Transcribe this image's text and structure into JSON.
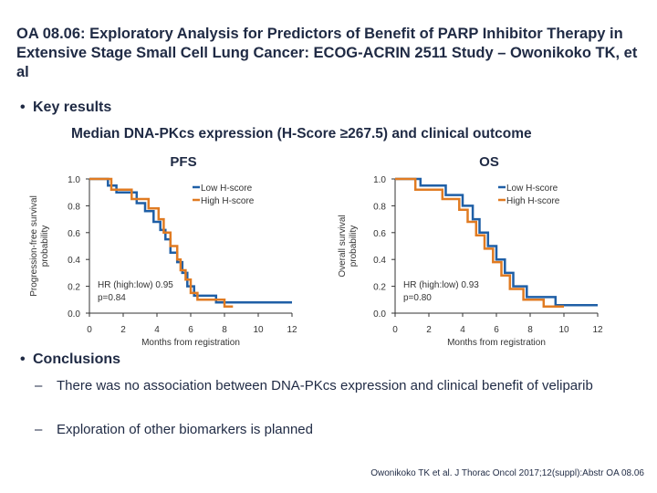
{
  "slide": {
    "title": "OA 08.06: Exploratory Analysis for Predictors of Benefit of PARP Inhibitor Therapy in Extensive Stage Small Cell Lung Cancer: ECOG-ACRIN 2511 Study – Owonikoko TK, et al",
    "key_results_heading": "Key results",
    "subtitle": "Median DNA-PKcs expression (H-Score ≥267.5) and clinical outcome",
    "conclusions_heading": "Conclusions",
    "conclusions": [
      "There was no association between DNA-PKcs expression and clinical benefit of veliparib",
      "Exploration of other biomarkers is planned"
    ],
    "citation": "Owonikoko TK et al. J Thorac Oncol 2017;12(suppl):Abstr OA 08.06"
  },
  "colors": {
    "low": "#1f5fa6",
    "high": "#e07b22",
    "text": "#1f2a44"
  },
  "chart_data": [
    {
      "type": "line",
      "title": "PFS",
      "xlabel": "Months from registration",
      "ylabel": "Progression-free survival probability",
      "xlim": [
        0,
        12
      ],
      "ylim": [
        0,
        1
      ],
      "xticks": [
        "0",
        "2",
        "4",
        "6",
        "8",
        "10",
        "12"
      ],
      "yticks": [
        "0.0",
        "0.2",
        "0.4",
        "0.6",
        "0.8",
        "1.0"
      ],
      "annotation": [
        "HR (high:low) 0.95",
        "p=0.84"
      ],
      "legend": [
        "Low H-score",
        "High H-score"
      ],
      "series": [
        {
          "name": "Low H-score",
          "color": "#1f5fa6",
          "points": [
            [
              0,
              1
            ],
            [
              1.1,
              1
            ],
            [
              1.1,
              0.95
            ],
            [
              1.6,
              0.95
            ],
            [
              1.6,
              0.9
            ],
            [
              2.8,
              0.9
            ],
            [
              2.8,
              0.82
            ],
            [
              3.3,
              0.82
            ],
            [
              3.3,
              0.76
            ],
            [
              3.8,
              0.76
            ],
            [
              3.8,
              0.68
            ],
            [
              4.2,
              0.68
            ],
            [
              4.2,
              0.62
            ],
            [
              4.5,
              0.62
            ],
            [
              4.5,
              0.55
            ],
            [
              4.8,
              0.55
            ],
            [
              4.8,
              0.45
            ],
            [
              5.2,
              0.45
            ],
            [
              5.2,
              0.38
            ],
            [
              5.5,
              0.38
            ],
            [
              5.5,
              0.3
            ],
            [
              5.8,
              0.3
            ],
            [
              5.8,
              0.2
            ],
            [
              6.2,
              0.2
            ],
            [
              6.2,
              0.13
            ],
            [
              7.5,
              0.13
            ],
            [
              7.5,
              0.08
            ],
            [
              12,
              0.08
            ]
          ]
        },
        {
          "name": "High H-score",
          "color": "#e07b22",
          "points": [
            [
              0,
              1
            ],
            [
              1.3,
              1
            ],
            [
              1.3,
              0.92
            ],
            [
              2.5,
              0.92
            ],
            [
              2.5,
              0.85
            ],
            [
              3.5,
              0.85
            ],
            [
              3.5,
              0.78
            ],
            [
              4.1,
              0.78
            ],
            [
              4.1,
              0.7
            ],
            [
              4.4,
              0.7
            ],
            [
              4.4,
              0.6
            ],
            [
              4.8,
              0.6
            ],
            [
              4.8,
              0.5
            ],
            [
              5.2,
              0.5
            ],
            [
              5.2,
              0.4
            ],
            [
              5.4,
              0.4
            ],
            [
              5.4,
              0.32
            ],
            [
              5.7,
              0.32
            ],
            [
              5.7,
              0.25
            ],
            [
              6.0,
              0.25
            ],
            [
              6.0,
              0.15
            ],
            [
              6.4,
              0.15
            ],
            [
              6.4,
              0.1
            ],
            [
              8.0,
              0.1
            ],
            [
              8.0,
              0.05
            ],
            [
              8.5,
              0.05
            ]
          ]
        }
      ]
    },
    {
      "type": "line",
      "title": "OS",
      "xlabel": "Months from registration",
      "ylabel": "Overall survival probability",
      "xlim": [
        0,
        12
      ],
      "ylim": [
        0,
        1
      ],
      "xticks": [
        "0",
        "2",
        "4",
        "6",
        "8",
        "10",
        "12"
      ],
      "yticks": [
        "0.0",
        "0.2",
        "0.4",
        "0.6",
        "0.8",
        "1.0"
      ],
      "annotation": [
        "HR (high:low) 0.93",
        "p=0.80"
      ],
      "legend": [
        "Low H-score",
        "High H-score"
      ],
      "series": [
        {
          "name": "Low H-score",
          "color": "#1f5fa6",
          "points": [
            [
              0,
              1
            ],
            [
              1.5,
              1
            ],
            [
              1.5,
              0.95
            ],
            [
              3.0,
              0.95
            ],
            [
              3.0,
              0.88
            ],
            [
              4.0,
              0.88
            ],
            [
              4.0,
              0.8
            ],
            [
              4.6,
              0.8
            ],
            [
              4.6,
              0.7
            ],
            [
              5.0,
              0.7
            ],
            [
              5.0,
              0.6
            ],
            [
              5.5,
              0.6
            ],
            [
              5.5,
              0.5
            ],
            [
              6.0,
              0.5
            ],
            [
              6.0,
              0.4
            ],
            [
              6.5,
              0.4
            ],
            [
              6.5,
              0.3
            ],
            [
              7.0,
              0.3
            ],
            [
              7.0,
              0.2
            ],
            [
              7.8,
              0.2
            ],
            [
              7.8,
              0.12
            ],
            [
              9.5,
              0.12
            ],
            [
              9.5,
              0.06
            ],
            [
              12,
              0.06
            ]
          ]
        },
        {
          "name": "High H-score",
          "color": "#e07b22",
          "points": [
            [
              0,
              1
            ],
            [
              1.2,
              1
            ],
            [
              1.2,
              0.92
            ],
            [
              2.8,
              0.92
            ],
            [
              2.8,
              0.85
            ],
            [
              3.8,
              0.85
            ],
            [
              3.8,
              0.77
            ],
            [
              4.3,
              0.77
            ],
            [
              4.3,
              0.68
            ],
            [
              4.8,
              0.68
            ],
            [
              4.8,
              0.58
            ],
            [
              5.3,
              0.58
            ],
            [
              5.3,
              0.48
            ],
            [
              5.8,
              0.48
            ],
            [
              5.8,
              0.38
            ],
            [
              6.3,
              0.38
            ],
            [
              6.3,
              0.28
            ],
            [
              6.8,
              0.28
            ],
            [
              6.8,
              0.18
            ],
            [
              7.6,
              0.18
            ],
            [
              7.6,
              0.1
            ],
            [
              8.8,
              0.1
            ],
            [
              8.8,
              0.05
            ],
            [
              10.0,
              0.05
            ]
          ]
        }
      ]
    }
  ]
}
